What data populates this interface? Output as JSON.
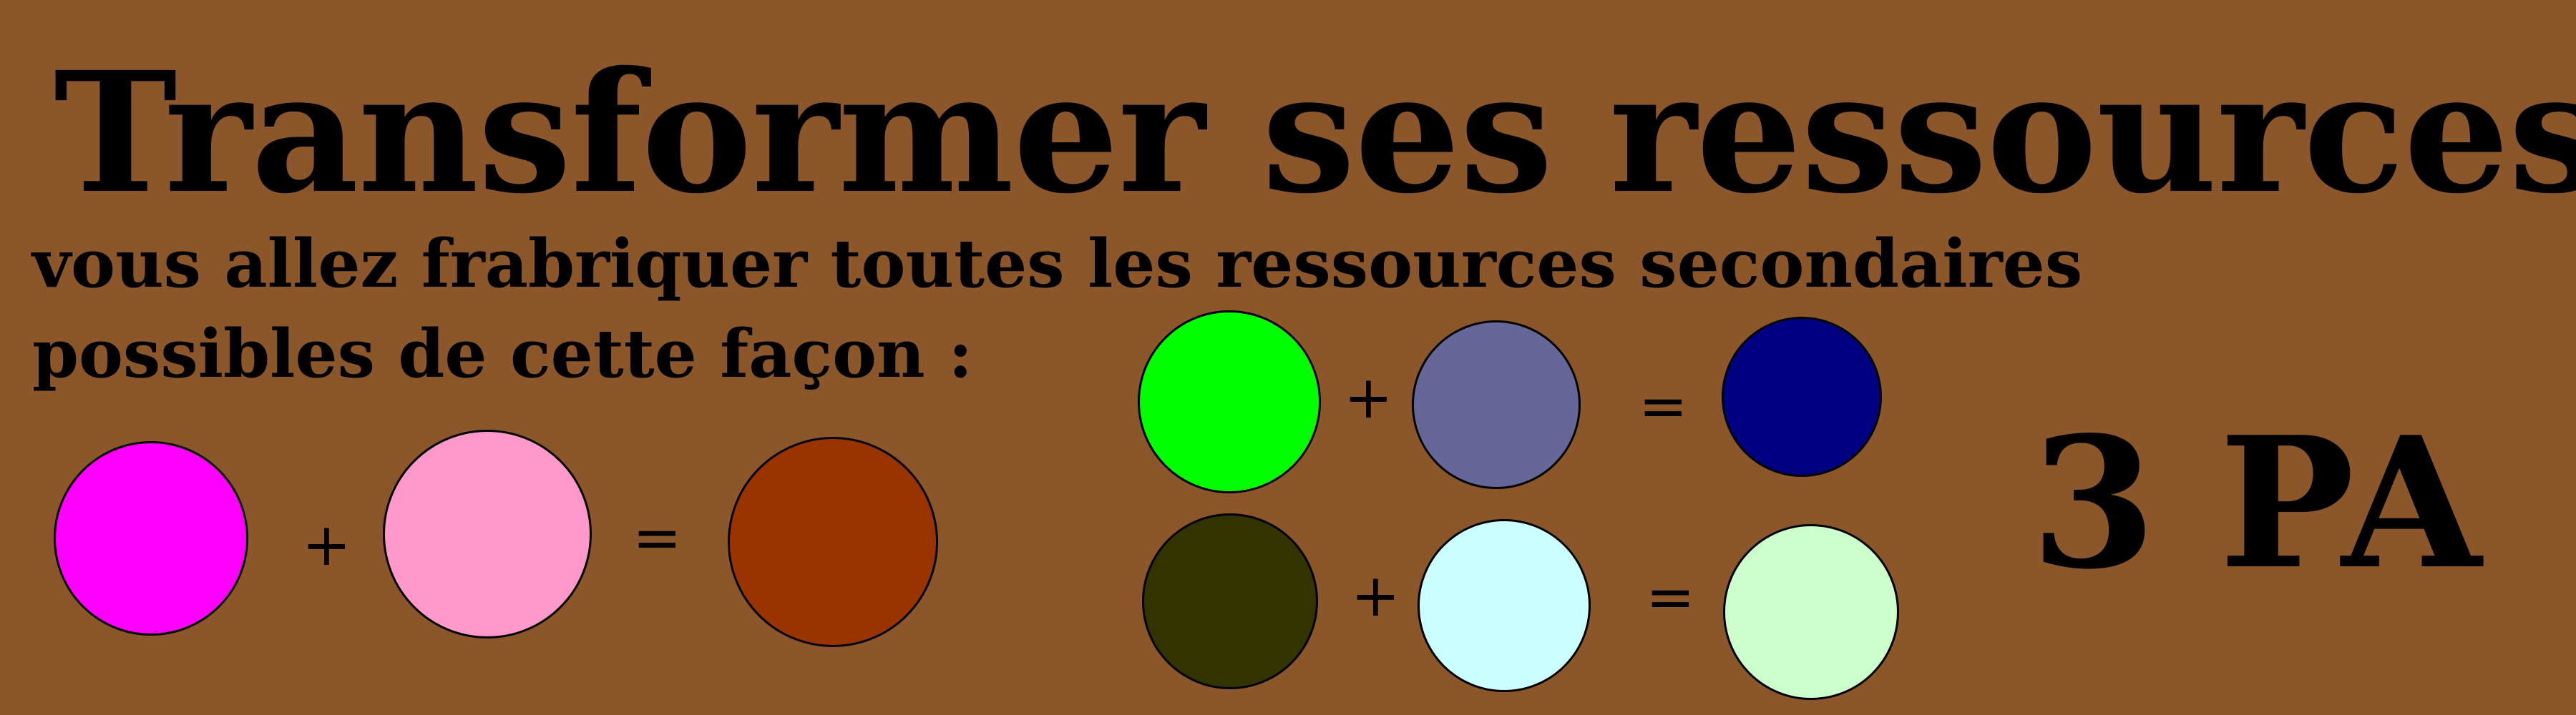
{
  "slide": {
    "title": "Transformer ses ressources",
    "subtitle_line1": "vous allez frabriquer toutes les ressources secondaires",
    "subtitle_line2": "possibles de cette façon :",
    "cost": "3 PA"
  },
  "operators": {
    "plus": "+",
    "equals": "="
  },
  "recipes": [
    {
      "input_a": {
        "color_name": "magenta",
        "color": "#ff00ff"
      },
      "input_b": {
        "color_name": "pink",
        "color": "#ff99cc"
      },
      "result": {
        "color_name": "brown",
        "color": "#993300"
      }
    },
    {
      "input_a": {
        "color_name": "green",
        "color": "#00ff00"
      },
      "input_b": {
        "color_name": "slate-blue",
        "color": "#666699"
      },
      "result": {
        "color_name": "navy",
        "color": "#000080"
      }
    },
    {
      "input_a": {
        "color_name": "dark-olive",
        "color": "#333300"
      },
      "input_b": {
        "color_name": "light-cyan",
        "color": "#ccffff"
      },
      "result": {
        "color_name": "light-green",
        "color": "#ccffcc"
      }
    }
  ],
  "colors": {
    "background": "#8b5629",
    "text": "#000000"
  }
}
